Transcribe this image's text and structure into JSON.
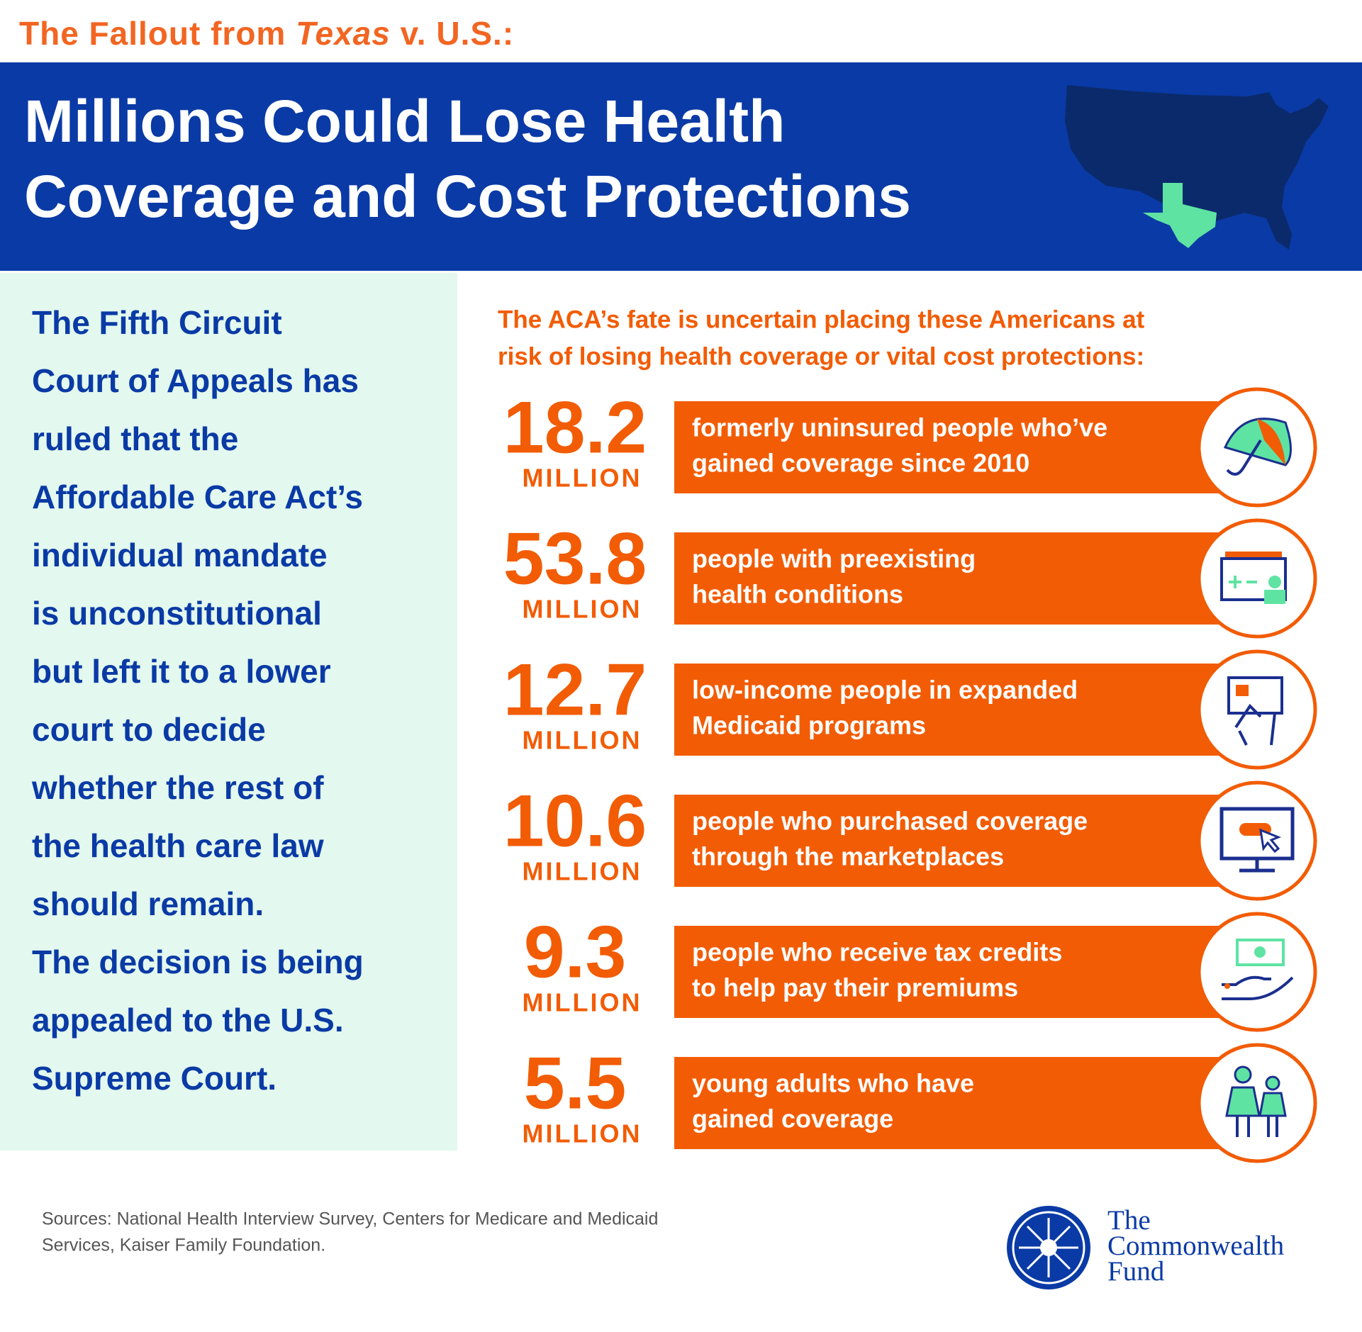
{
  "kicker": {
    "before": "The Fallout from ",
    "italic": "Texas",
    "after": " v. U.S.:"
  },
  "title": {
    "lines": [
      "Millions Could Lose Health",
      "Coverage and Cost Protections"
    ]
  },
  "body": {
    "lines": [
      "The Fifth Circuit",
      "Court of Appeals has",
      "ruled that the",
      "Affordable Care Act’s",
      "individual mandate",
      "is unconstitutional",
      "but left it to a lower",
      "court to decide",
      "whether the rest of",
      "the health care law",
      "should remain.",
      "The decision is being",
      "appealed to the U.S.",
      "Supreme Court."
    ]
  },
  "intro": {
    "lines": [
      "The ACA’s fate is uncertain placing these Americans at",
      "risk of losing health coverage or vital cost protections:"
    ]
  },
  "rows": [
    {
      "number": 18.2,
      "unit": "MILLION",
      "lines": [
        "formerly uninsured people who’ve",
        "gained coverage since 2010"
      ]
    },
    {
      "number": 53.8,
      "unit": "MILLION",
      "lines": [
        "people with preexisting",
        "health conditions"
      ]
    },
    {
      "number": 12.7,
      "unit": "MILLION",
      "lines": [
        "low-income people in expanded",
        "Medicaid programs"
      ]
    },
    {
      "number": 10.6,
      "unit": "MILLION",
      "lines": [
        "people who purchased coverage",
        "through the marketplaces"
      ]
    },
    {
      "number": 9.3,
      "unit": "MILLION",
      "lines": [
        "people who receive tax credits",
        "to help pay their premiums"
      ]
    },
    {
      "number": 5.5,
      "unit": "MILLION",
      "lines": [
        "young adults who have",
        "gained coverage"
      ]
    }
  ],
  "footer": {
    "sources": [
      "Sources: National Health Interview Survey, Centers for Medicare and Medicaid",
      "Services, Kaiser Family Foundation."
    ],
    "logo": [
      "The",
      "Commonwealth",
      "Fund"
    ]
  }
}
